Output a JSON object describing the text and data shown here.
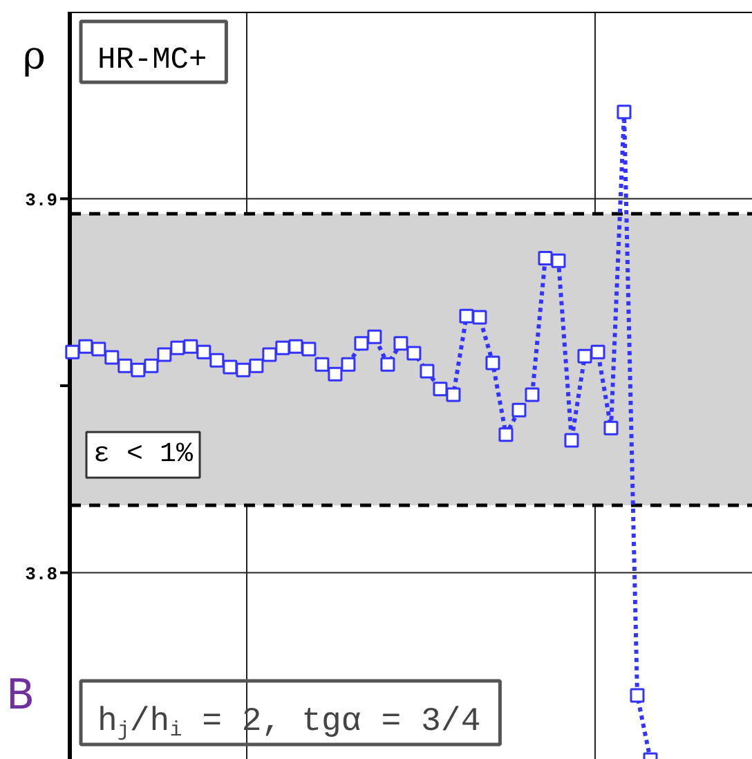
{
  "chart_data": {
    "type": "line",
    "ylabel": "ρ",
    "annotations": [
      "HR-MC+",
      "h$_{j}$/h$_{i}$ = 2, tgα = 3/4",
      "B"
    ],
    "categories": [
      null,
      null,
      null,
      null,
      null,
      null,
      null,
      null,
      null,
      null,
      null,
      null,
      null,
      null,
      null,
      null,
      null,
      null,
      null,
      null,
      null,
      null,
      null,
      null,
      null,
      null,
      null,
      null,
      null,
      null,
      null,
      null,
      null,
      null,
      null,
      null,
      null,
      null,
      null,
      null,
      null,
      null,
      null,
      null,
      null
    ],
    "ylim": [
      3.75,
      3.95
    ],
    "yticks": [
      3.8,
      {
        "value": 3.85,
        "label": null
      },
      3.9
    ],
    "grid": "y",
    "marker": "square",
    "line_style": "dotted",
    "tick_labels": "y",
    "bands": [
      {
        "axis": "y",
        "from": 3.818,
        "to": 3.896,
        "label": "ε < 1%",
        "color": "#d3d3d3"
      }
    ],
    "ref_lines": [
      {
        "axis": "y",
        "value": 3.818,
        "color": "#000000",
        "line_style": "dashed"
      },
      {
        "axis": "y",
        "value": 3.896,
        "color": "#000000",
        "line_style": "dashed"
      }
    ],
    "series": [
      {
        "color": "#3333ff",
        "values": [
          3.859,
          3.8605,
          3.8598,
          3.8576,
          3.8553,
          3.8542,
          3.8553,
          3.8583,
          3.8601,
          3.8605,
          3.859,
          3.8568,
          3.855,
          3.8542,
          3.8553,
          3.8583,
          3.8601,
          3.8605,
          3.8598,
          3.8557,
          3.8531,
          3.8557,
          3.8613,
          3.8631,
          3.8557,
          3.8613,
          3.8587,
          3.8539,
          3.8491,
          3.8476,
          3.8686,
          3.8683,
          3.8561,
          3.8369,
          3.8435,
          3.8476,
          3.8841,
          3.8834,
          3.8354,
          3.8579,
          3.859,
          3.8387,
          3.9232,
          3.7672,
          3.75
        ]
      }
    ]
  }
}
